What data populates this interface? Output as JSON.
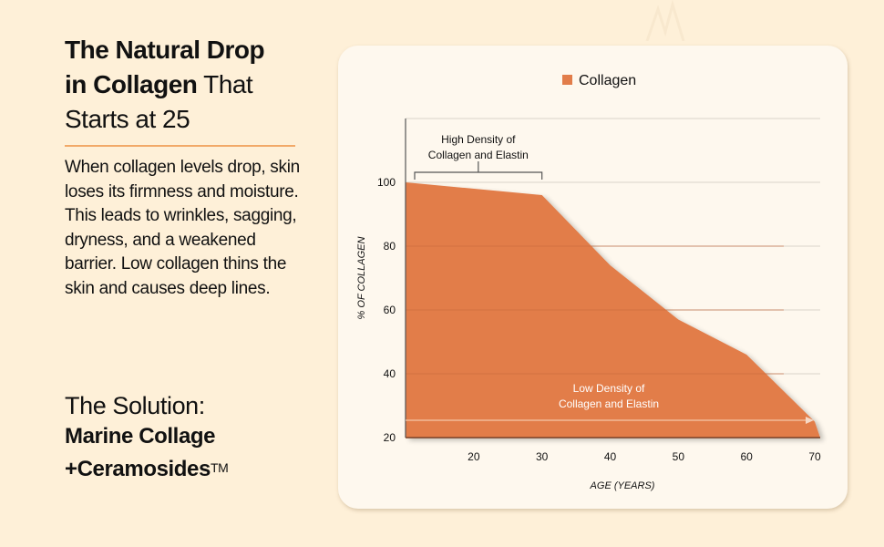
{
  "heading": {
    "bold_part": "The Natural Drop in Collagen",
    "regular_part": " That Starts at 25",
    "line1": "The Natural Drop",
    "line2_bold": "in Collagen",
    "line2_regular": " That",
    "line3": "Starts at 25"
  },
  "body_text": "When collagen levels drop, skin loses its firmness and moisture. This leads to wrinkles, sagging, dryness, and a weakened barrier. Low collagen thins the skin and causes deep lines.",
  "solution": {
    "intro": "The Solution:",
    "product_line1": "Marine Collage",
    "product_line2": "+Ceramosides",
    "trademark": "TM"
  },
  "colors": {
    "background": "#fef0d8",
    "card": "#fef8ee",
    "accent_rule": "#f2a968",
    "area_fill": "#e27d4a"
  },
  "chart_data": {
    "type": "area",
    "title": "",
    "legend": {
      "entries": [
        "Collagen"
      ],
      "placement": "top-center"
    },
    "xlabel": "AGE (YEARS)",
    "ylabel": "% OF COLLAGEN",
    "x": [
      10,
      30,
      40,
      50,
      60,
      70
    ],
    "series": [
      {
        "name": "Collagen",
        "values": [
          100,
          96,
          74,
          57,
          46,
          25
        ]
      }
    ],
    "xlim": [
      10,
      70
    ],
    "ylim": [
      20,
      120
    ],
    "xticks": [
      20,
      30,
      40,
      50,
      60,
      70
    ],
    "yticks": [
      20,
      40,
      60,
      80,
      100
    ],
    "grid": true,
    "annotations": [
      {
        "text_lines": [
          "High Density of",
          "Collagen and Elastin"
        ],
        "type": "bracket",
        "x_range": [
          10,
          30
        ]
      },
      {
        "text_lines": [
          "Low Density of",
          "Collagen and Elastin"
        ],
        "type": "arrow",
        "x_range": [
          10,
          70
        ]
      }
    ]
  }
}
